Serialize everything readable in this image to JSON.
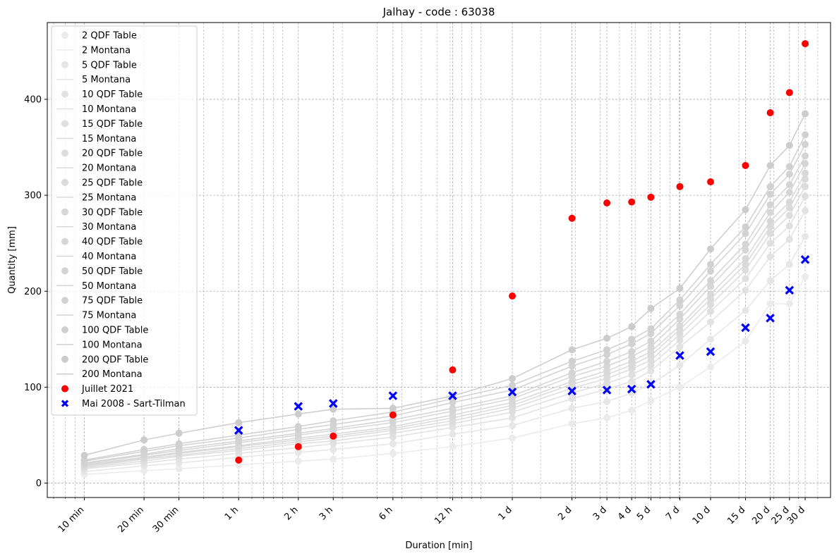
{
  "chart_data": {
    "type": "scatter",
    "title": "Jalhay - code : 63038",
    "xlabel": "Duration [min]",
    "ylabel": "Quantity [mm]",
    "x_scale": "log",
    "x_unit": "minutes",
    "xlim": [
      6.5,
      58000
    ],
    "ylim": [
      -15,
      480
    ],
    "grid": true,
    "grid_minor": true,
    "legend_position": "upper-left",
    "x_ticks": [
      {
        "value": 10,
        "label": "10 min"
      },
      {
        "value": 20,
        "label": "20 min"
      },
      {
        "value": 30,
        "label": "30 min"
      },
      {
        "value": 60,
        "label": "1 h"
      },
      {
        "value": 120,
        "label": "2 h"
      },
      {
        "value": 180,
        "label": "3 h"
      },
      {
        "value": 360,
        "label": "6 h"
      },
      {
        "value": 720,
        "label": "12 h"
      },
      {
        "value": 1440,
        "label": "1 d"
      },
      {
        "value": 2880,
        "label": "2 d"
      },
      {
        "value": 4320,
        "label": "3 d"
      },
      {
        "value": 5760,
        "label": "4 d"
      },
      {
        "value": 7200,
        "label": "5 d"
      },
      {
        "value": 10080,
        "label": "7 d"
      },
      {
        "value": 14400,
        "label": "10 d"
      },
      {
        "value": 21600,
        "label": "15 d"
      },
      {
        "value": 28800,
        "label": "20 d"
      },
      {
        "value": 36000,
        "label": "25 d"
      },
      {
        "value": 43200,
        "label": "30 d"
      }
    ],
    "y_ticks": [
      {
        "value": 0,
        "label": "0"
      },
      {
        "value": 100,
        "label": "100"
      },
      {
        "value": 200,
        "label": "200"
      },
      {
        "value": 300,
        "label": "300"
      },
      {
        "value": 400,
        "label": "400"
      }
    ],
    "durations": [
      10,
      20,
      30,
      60,
      120,
      180,
      360,
      720,
      1440,
      2880,
      4320,
      5760,
      7200,
      10080,
      14400,
      21600,
      28800,
      36000,
      43200
    ],
    "return_periods": [
      {
        "label_table": "2 QDF Table",
        "label_montana": "2 Montana",
        "color": "#ebebeb",
        "values": [
          9,
          13,
          15,
          19,
          23,
          25,
          31,
          38,
          47,
          62,
          68,
          76,
          86,
          100,
          121,
          148,
          187,
          187,
          215
        ]
      },
      {
        "label_table": "5 QDF Table",
        "label_montana": "5 Montana",
        "color": "#e6e6e6",
        "values": [
          12,
          18,
          21,
          27,
          32,
          35,
          41,
          51,
          60,
          78,
          85,
          94,
          103,
          123,
          150,
          180,
          211,
          228,
          257
        ]
      },
      {
        "label_table": "10 QDF Table",
        "label_montana": "10 Montana",
        "color": "#e2e2e2",
        "values": [
          15,
          21,
          25,
          31,
          37,
          41,
          48,
          58,
          68,
          88,
          98,
          106,
          117,
          142,
          168,
          201,
          236,
          254,
          284
        ]
      },
      {
        "label_table": "15 QDF Table",
        "label_montana": "15 Montana",
        "color": "#dfdfdf",
        "values": [
          16,
          23,
          28,
          34,
          41,
          44,
          52,
          62,
          74,
          94,
          104,
          113,
          123,
          149,
          179,
          213,
          250,
          268,
          299
        ]
      },
      {
        "label_table": "20 QDF Table",
        "label_montana": "20 Montana",
        "color": "#dcdcdc",
        "values": [
          17,
          25,
          29,
          36,
          43,
          47,
          55,
          65,
          78,
          99,
          109,
          119,
          128,
          155,
          186,
          222,
          260,
          279,
          309
        ]
      },
      {
        "label_table": "25 QDF Table",
        "label_montana": "25 Montana",
        "color": "#dadada",
        "values": [
          18,
          26,
          31,
          38,
          45,
          49,
          57,
          68,
          81,
          103,
          113,
          123,
          133,
          160,
          192,
          228,
          267,
          287,
          317
        ]
      },
      {
        "label_table": "30 QDF Table",
        "label_montana": "30 Montana",
        "color": "#d8d8d8",
        "values": [
          19,
          27,
          32,
          39,
          47,
          51,
          59,
          71,
          84,
          106,
          117,
          127,
          137,
          164,
          197,
          234,
          273,
          293,
          323
        ]
      },
      {
        "label_table": "40 QDF Table",
        "label_montana": "40 Montana",
        "color": "#d6d6d6",
        "values": [
          20,
          29,
          34,
          42,
          50,
          55,
          63,
          75,
          88,
          111,
          122,
          132,
          142,
          171,
          205,
          243,
          282,
          303,
          333
        ]
      },
      {
        "label_table": "50 QDF Table",
        "label_montana": "50 Montana",
        "color": "#d4d4d4",
        "values": [
          21,
          30,
          36,
          44,
          52,
          57,
          66,
          78,
          91,
          115,
          127,
          137,
          148,
          176,
          211,
          249,
          290,
          311,
          341
        ]
      },
      {
        "label_table": "75 QDF Table",
        "label_montana": "75 Montana",
        "color": "#d2d2d2",
        "values": [
          23,
          33,
          39,
          47,
          56,
          61,
          70,
          84,
          97,
          122,
          134,
          145,
          156,
          185,
          221,
          260,
          301,
          322,
          353
        ]
      },
      {
        "label_table": "100 QDF Table",
        "label_montana": "100 Montana",
        "color": "#d0d0d0",
        "values": [
          24,
          35,
          41,
          50,
          59,
          65,
          74,
          88,
          102,
          127,
          139,
          150,
          161,
          191,
          228,
          267,
          309,
          330,
          363
        ]
      },
      {
        "label_table": "200 QDF Table",
        "label_montana": "200 Montana",
        "color": "#cccccc",
        "values": [
          29,
          45,
          52,
          63,
          72,
          77,
          78,
          91,
          109,
          139,
          151,
          163,
          182,
          203,
          244,
          285,
          331,
          352,
          385
        ]
      }
    ],
    "events": [
      {
        "name": "Juillet 2021",
        "marker": "circle",
        "color": "#ff0000",
        "x": [
          60,
          120,
          180,
          360,
          720,
          1440,
          2880,
          4320,
          5760,
          7200,
          10080,
          14400,
          21600,
          28800,
          36000,
          43200
        ],
        "y": [
          24,
          38,
          49,
          71,
          118,
          195,
          276,
          292,
          293,
          298,
          309,
          314,
          331,
          386,
          407,
          458
        ]
      },
      {
        "name": "Mai 2008 - Sart-Tilman",
        "marker": "x",
        "color": "#0000ff",
        "x": [
          60,
          120,
          180,
          360,
          720,
          1440,
          2880,
          4320,
          5760,
          7200,
          10080,
          14400,
          21600,
          28800,
          36000,
          43200
        ],
        "y": [
          55,
          80,
          83,
          91,
          91,
          95,
          96,
          97,
          98,
          103,
          133,
          137,
          162,
          172,
          201,
          233
        ]
      }
    ]
  }
}
